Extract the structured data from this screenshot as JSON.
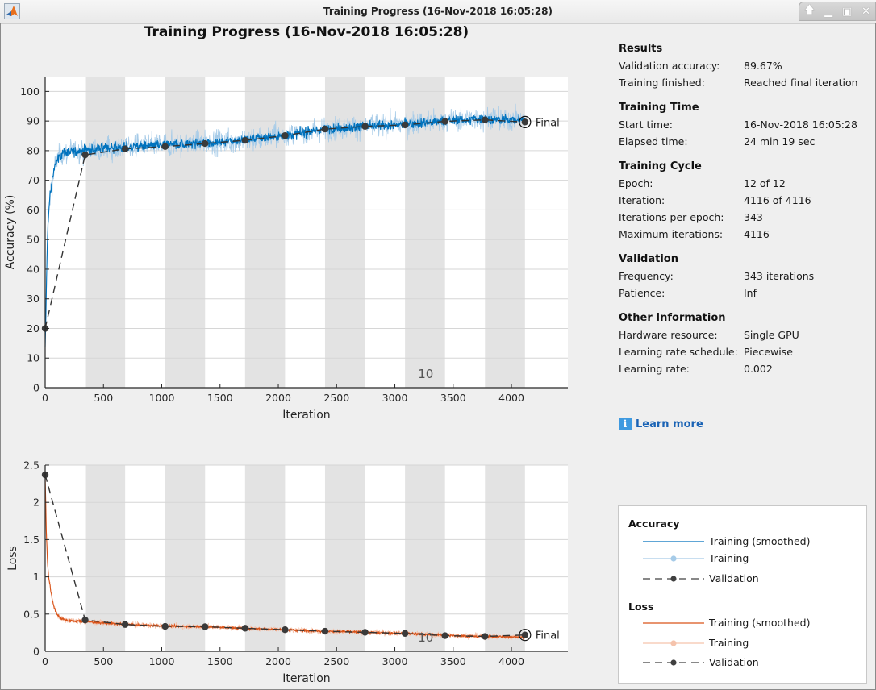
{
  "window": {
    "title": "Training Progress (16-Nov-2018 16:05:28)",
    "controls": [
      "restore-up",
      "minimize",
      "maximize",
      "close"
    ]
  },
  "plot_title": "Training Progress (16-Nov-2018 16:05:28)",
  "chart_data": [
    {
      "type": "line",
      "name": "accuracy",
      "title": "",
      "xlabel": "Iteration",
      "ylabel": "Accuracy (%)",
      "xlim": [
        0,
        4484
      ],
      "ylim": [
        0,
        105
      ],
      "xticks": [
        0,
        500,
        1000,
        1500,
        2000,
        2500,
        3000,
        3500,
        4000
      ],
      "yticks": [
        0,
        10,
        20,
        30,
        40,
        50,
        60,
        70,
        80,
        90,
        100
      ],
      "grid": "y",
      "iterations_per_epoch": 343,
      "epochs": 12,
      "epoch_shading": "alternate epochs shaded grey",
      "epoch_label": {
        "text": "10",
        "epoch": 10
      },
      "final_label": "Final",
      "series": [
        {
          "name": "Training (smoothed)",
          "color": "#0072bd",
          "x": [
            0,
            20,
            40,
            60,
            80,
            100,
            130,
            160,
            200,
            300,
            343,
            500,
            686,
            1029,
            1372,
            1715,
            2058,
            2401,
            2744,
            3087,
            3430,
            3773,
            4116
          ],
          "values": [
            13,
            52,
            64,
            70,
            74,
            77,
            78.5,
            79,
            79.5,
            80,
            80.2,
            80.8,
            81.2,
            82,
            82.6,
            83.6,
            85.2,
            87.2,
            88.2,
            88.9,
            90.2,
            90.6,
            90.4
          ]
        },
        {
          "name": "Training",
          "color": "#a6cbe8",
          "note": "noisy per-iteration values around smoothed curve, amplitude ~±5%"
        },
        {
          "name": "Validation",
          "color": "#404040",
          "style": "dashed with markers",
          "x": [
            0,
            343,
            686,
            1029,
            1372,
            1715,
            2058,
            2401,
            2744,
            3087,
            3430,
            3773,
            4116
          ],
          "values": [
            20,
            78.6,
            80.6,
            81.4,
            82.4,
            83.5,
            85.1,
            87.3,
            88.2,
            88.7,
            89.9,
            90.4,
            89.67
          ]
        }
      ]
    },
    {
      "type": "line",
      "name": "loss",
      "title": "",
      "xlabel": "Iteration",
      "ylabel": "Loss",
      "xlim": [
        0,
        4484
      ],
      "ylim": [
        0,
        2.5
      ],
      "xticks": [
        0,
        500,
        1000,
        1500,
        2000,
        2500,
        3000,
        3500,
        4000
      ],
      "yticks": [
        0,
        0.5,
        1,
        1.5,
        2,
        2.5
      ],
      "ytick_labels": [
        "0",
        "0.5",
        "1",
        "1.5",
        "2",
        "2.5"
      ],
      "grid": "y",
      "iterations_per_epoch": 343,
      "epochs": 12,
      "epoch_label": {
        "text": "10",
        "epoch": 10
      },
      "final_label": "Final",
      "series": [
        {
          "name": "Training (smoothed)",
          "color": "#d95319",
          "x": [
            0,
            10,
            20,
            30,
            45,
            60,
            80,
            100,
            130,
            170,
            220,
            343,
            686,
            1029,
            1372,
            1715,
            2058,
            2401,
            2744,
            3087,
            3430,
            3773,
            4116
          ],
          "values": [
            2.35,
            1.6,
            1.2,
            1.0,
            0.85,
            0.7,
            0.58,
            0.5,
            0.45,
            0.42,
            0.41,
            0.4,
            0.36,
            0.34,
            0.33,
            0.31,
            0.29,
            0.27,
            0.255,
            0.24,
            0.215,
            0.2,
            0.19
          ]
        },
        {
          "name": "Training",
          "color": "#f5c3ac",
          "note": "noisy per-iteration values around smoothed curve"
        },
        {
          "name": "Validation",
          "color": "#404040",
          "style": "dashed with markers",
          "x": [
            0,
            343,
            686,
            1029,
            1372,
            1715,
            2058,
            2401,
            2744,
            3087,
            3430,
            3773,
            4116
          ],
          "values": [
            2.37,
            0.42,
            0.36,
            0.335,
            0.33,
            0.31,
            0.29,
            0.27,
            0.255,
            0.24,
            0.21,
            0.2,
            0.22
          ]
        }
      ]
    }
  ],
  "sidebar": {
    "sections": [
      {
        "heading": "Results",
        "rows": [
          {
            "label": "Validation accuracy:",
            "value": "89.67%"
          },
          {
            "label": "Training finished:",
            "value": "Reached final iteration"
          }
        ]
      },
      {
        "heading": "Training Time",
        "rows": [
          {
            "label": "Start time:",
            "value": "16-Nov-2018 16:05:28"
          },
          {
            "label": "Elapsed time:",
            "value": "24 min 19 sec"
          }
        ]
      },
      {
        "heading": "Training Cycle",
        "rows": [
          {
            "label": "Epoch:",
            "value": "12 of 12"
          },
          {
            "label": "Iteration:",
            "value": "4116 of 4116"
          },
          {
            "label": "Iterations per epoch:",
            "value": "343"
          },
          {
            "label": "Maximum iterations:",
            "value": "4116"
          }
        ]
      },
      {
        "heading": "Validation",
        "rows": [
          {
            "label": "Frequency:",
            "value": "343 iterations"
          },
          {
            "label": "Patience:",
            "value": "Inf"
          }
        ]
      },
      {
        "heading": "Other Information",
        "rows": [
          {
            "label": "Hardware resource:",
            "value": "Single GPU"
          },
          {
            "label": "Learning rate schedule:",
            "value": "Piecewise"
          },
          {
            "label": "Learning rate:",
            "value": "0.002"
          }
        ]
      }
    ],
    "learn_more": {
      "icon": "info-icon",
      "label": "Learn more"
    }
  },
  "legend": {
    "groups": [
      {
        "heading": "Accuracy",
        "items": [
          {
            "label": "Training (smoothed)",
            "color": "#0072bd",
            "style": "solid"
          },
          {
            "label": "Training",
            "color": "#a6cbe8",
            "style": "solid-marker"
          },
          {
            "label": "Validation",
            "color": "#404040",
            "style": "dashed-marker"
          }
        ]
      },
      {
        "heading": "Loss",
        "items": [
          {
            "label": "Training (smoothed)",
            "color": "#d95319",
            "style": "solid"
          },
          {
            "label": "Training",
            "color": "#f5c3ac",
            "style": "solid-marker"
          },
          {
            "label": "Validation",
            "color": "#404040",
            "style": "dashed-marker"
          }
        ]
      }
    ]
  }
}
